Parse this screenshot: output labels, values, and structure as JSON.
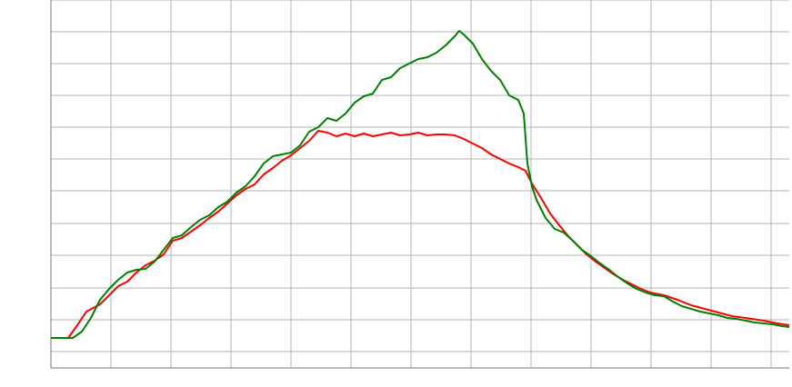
{
  "chart_data": {
    "type": "line",
    "xlim": [
      0,
      812
    ],
    "ylim": [
      0,
      405
    ],
    "xticks": [
      0,
      66,
      132,
      198,
      264,
      330,
      396,
      462,
      528,
      594,
      660,
      726,
      792
    ],
    "yticks": [
      18,
      53,
      88,
      124,
      159,
      195,
      230,
      265,
      300,
      335,
      370,
      405
    ],
    "grid": true,
    "series": [
      {
        "color": "#008000",
        "x": [
          0,
          24,
          34,
          44,
          54,
          64,
          74,
          84,
          94,
          104,
          114,
          124,
          134,
          144,
          154,
          164,
          174,
          184,
          194,
          204,
          214,
          224,
          234,
          244,
          254,
          264,
          274,
          284,
          294,
          304,
          314,
          324,
          334,
          344,
          354,
          364,
          374,
          384,
          394,
          404,
          414,
          424,
          434,
          444,
          449,
          454,
          464,
          474,
          484,
          494,
          504,
          514,
          520,
          524,
          529,
          534,
          544,
          554,
          564,
          574,
          584,
          594,
          604,
          614,
          624,
          634,
          644,
          654,
          664,
          674,
          684,
          694,
          704,
          714,
          724,
          734,
          744,
          754,
          764,
          774,
          784,
          794,
          804,
          812
        ],
        "values": [
          33,
          33,
          40,
          55,
          75,
          87,
          97,
          105,
          108,
          109,
          117,
          130,
          143,
          146,
          155,
          163,
          168,
          177,
          183,
          193,
          200,
          211,
          225,
          233,
          235,
          237,
          245,
          260,
          265,
          275,
          272,
          280,
          292,
          299,
          302,
          317,
          320,
          330,
          335,
          340,
          342,
          347,
          355,
          365,
          371,
          367,
          357,
          340,
          327,
          317,
          300,
          295,
          280,
          225,
          200,
          185,
          165,
          153,
          149,
          140,
          130,
          123,
          115,
          108,
          100,
          93,
          87,
          83,
          80,
          79,
          73,
          68,
          65,
          62,
          60,
          58,
          55,
          54,
          52,
          50,
          49,
          48,
          46,
          45
        ]
      },
      {
        "color": "#ff0000",
        "x": [
          0,
          19,
          29,
          39,
          54,
          64,
          74,
          84,
          94,
          104,
          114,
          124,
          134,
          144,
          154,
          164,
          174,
          184,
          194,
          204,
          214,
          224,
          234,
          244,
          254,
          264,
          274,
          284,
          294,
          304,
          314,
          324,
          334,
          344,
          354,
          364,
          374,
          384,
          394,
          404,
          414,
          424,
          434,
          444,
          454,
          464,
          474,
          484,
          494,
          504,
          514,
          522,
          529,
          539,
          549,
          559,
          569,
          579,
          589,
          599,
          609,
          619,
          629,
          639,
          649,
          659,
          674,
          689,
          704,
          719,
          734,
          749,
          764,
          784,
          799,
          812
        ],
        "values": [
          33,
          33,
          47,
          62,
          70,
          80,
          90,
          95,
          105,
          113,
          118,
          125,
          140,
          143,
          150,
          157,
          165,
          172,
          181,
          190,
          197,
          202,
          213,
          220,
          228,
          234,
          242,
          250,
          261,
          259,
          255,
          258,
          255,
          258,
          255,
          257,
          259,
          256,
          257,
          259,
          256,
          257,
          257,
          256,
          252,
          247,
          242,
          235,
          230,
          225,
          221,
          217,
          203,
          187,
          170,
          157,
          145,
          135,
          125,
          117,
          110,
          103,
          97,
          92,
          87,
          83,
          80,
          75,
          69,
          65,
          61,
          57,
          55,
          52,
          49,
          47
        ]
      }
    ]
  }
}
